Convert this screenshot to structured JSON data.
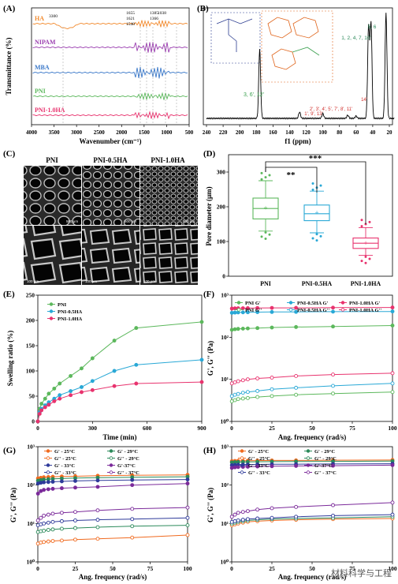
{
  "panelA": {
    "label": "(A)",
    "ylabel": "Transmittance (%)",
    "xlabel": "Wavenumber (cm⁻¹)",
    "xticks": [
      "4000",
      "3500",
      "3000",
      "2500",
      "2000",
      "1500",
      "1000",
      "500"
    ],
    "annotations": [
      "3300",
      "1655",
      "1621",
      "1540",
      "1385",
      "1366",
      "1038"
    ],
    "series": [
      {
        "name": "HA",
        "color": "#f28a2e"
      },
      {
        "name": "NIPAM",
        "color": "#9b3fb0"
      },
      {
        "name": "MBA",
        "color": "#3a78c9"
      },
      {
        "name": "PNI",
        "color": "#5cb85c"
      },
      {
        "name": "PNI-1.0HA",
        "color": "#e8336e"
      }
    ]
  },
  "panelB": {
    "label": "(B)",
    "xlabel": "f1 (ppm)",
    "xticks": [
      "240",
      "220",
      "200",
      "180",
      "160",
      "140",
      "120",
      "100",
      "80",
      "60",
      "40",
      "20"
    ],
    "peaks": [
      "3, 6', 12'",
      "1', 9', 13'",
      "2', 3', 4', 5', 7', 8', 11'",
      "14'",
      "1, 2, 4, 7, 10'",
      "5, 6"
    ]
  },
  "panelC": {
    "label": "(C)",
    "columns": [
      "PNI",
      "PNI-0.5HA",
      "PNI-1.0HA"
    ],
    "scale_top": "500 μm",
    "scale_bottom": "100 μm"
  },
  "panelD": {
    "label": "(D)",
    "ylabel": "Pore diameter (μm)",
    "sig1": "**",
    "sig2": "***",
    "chart_data": {
      "type": "box",
      "categories": [
        "PNI",
        "PNI-0.5HA",
        "PNI-1.0HA"
      ],
      "ylim": [
        0,
        350
      ],
      "yticks": [
        0,
        100,
        200,
        300
      ],
      "boxes": [
        {
          "min": 130,
          "q1": 165,
          "median": 195,
          "q3": 225,
          "max": 275,
          "mean": 197,
          "color": "#5cb85c"
        },
        {
          "min": 125,
          "q1": 160,
          "median": 180,
          "q3": 205,
          "max": 245,
          "mean": 183,
          "color": "#29a8d6"
        },
        {
          "min": 60,
          "q1": 80,
          "median": 95,
          "q3": 110,
          "max": 140,
          "mean": 96,
          "color": "#e8336e"
        }
      ]
    }
  },
  "panelE": {
    "label": "(E)",
    "ylabel": "Swelling ratio (%)",
    "xlabel": "Time (min)",
    "chart_data": {
      "type": "line",
      "xlim": [
        0,
        900
      ],
      "ylim": [
        0,
        250
      ],
      "xticks": [
        0,
        300,
        600,
        900
      ],
      "yticks": [
        0,
        50,
        100,
        150,
        200,
        250
      ],
      "x": [
        0,
        10,
        20,
        40,
        60,
        90,
        120,
        180,
        240,
        300,
        420,
        540,
        900
      ],
      "series": [
        {
          "name": "PNI",
          "color": "#5cb85c",
          "values": [
            0,
            25,
            35,
            45,
            55,
            65,
            75,
            90,
            105,
            125,
            160,
            185,
            197
          ]
        },
        {
          "name": "PNI-0.5HA",
          "color": "#29a8d6",
          "values": [
            0,
            18,
            25,
            32,
            38,
            45,
            52,
            60,
            68,
            80,
            100,
            112,
            122
          ]
        },
        {
          "name": "PNI-1.0HA",
          "color": "#e8336e",
          "values": [
            0,
            15,
            22,
            28,
            33,
            40,
            45,
            52,
            58,
            62,
            70,
            75,
            78
          ]
        }
      ]
    }
  },
  "panelF": {
    "label": "(F)",
    "ylabel": "G', G'' (Pa)",
    "xlabel": "Ang. frequency (rad/s)",
    "legend": [
      "PNI G'",
      "PNI-0.5HA G'",
      "PNI-1.0HA G'",
      "PNI G''",
      "PNI-0.5HA G''",
      "PNI-1.0HA G''"
    ],
    "chart_data": {
      "type": "line",
      "log_y": true,
      "xlim": [
        0,
        100
      ],
      "ylim_exp": [
        0,
        3
      ],
      "x": [
        0.1,
        2,
        4,
        7,
        10,
        16,
        25,
        40,
        63,
        100
      ],
      "series": [
        {
          "name": "PNI G'",
          "color": "#5cb85c",
          "filled": true,
          "values": [
            150,
            155,
            158,
            160,
            162,
            165,
            170,
            175,
            180,
            190
          ]
        },
        {
          "name": "PNI-0.5HA G'",
          "color": "#29a8d6",
          "filled": true,
          "values": [
            380,
            385,
            388,
            390,
            392,
            395,
            398,
            400,
            405,
            410
          ]
        },
        {
          "name": "PNI-1.0HA G'",
          "color": "#e8336e",
          "filled": true,
          "values": [
            480,
            485,
            488,
            490,
            492,
            495,
            498,
            500,
            505,
            510
          ]
        },
        {
          "name": "PNI G''",
          "color": "#5cb85c",
          "filled": false,
          "values": [
            3,
            3.2,
            3.4,
            3.5,
            3.6,
            3.8,
            4,
            4.3,
            4.6,
            5
          ]
        },
        {
          "name": "PNI-0.5HA G''",
          "color": "#29a8d6",
          "filled": false,
          "values": [
            4,
            4.3,
            4.5,
            4.8,
            5,
            5.3,
            5.8,
            6.3,
            7,
            8
          ]
        },
        {
          "name": "PNI-1.0HA G''",
          "color": "#e8336e",
          "filled": false,
          "values": [
            8,
            8.5,
            9,
            9.5,
            10,
            10.5,
            11,
            12,
            13,
            14
          ]
        }
      ]
    }
  },
  "panelG": {
    "label": "(G)",
    "ylabel": "G', G'' (Pa)",
    "xlabel": "Ang. frequency (rad/s)",
    "legend": [
      "G' - 25°C",
      "G' - 29°C",
      "G'' - 25°C",
      "G'' - 29°C",
      "G' - 33°C",
      "G'-37°C",
      "G'' - 33°C",
      "G'' - 37°C"
    ],
    "chart_data": {
      "type": "line",
      "log_y": true,
      "xlim": [
        0,
        100
      ],
      "ylim_exp": [
        0,
        3
      ],
      "x": [
        0.1,
        2,
        4,
        7,
        10,
        16,
        25,
        40,
        63,
        100
      ],
      "series": [
        {
          "name": "G' - 25°C",
          "color": "#f06a1f",
          "filled": true,
          "values": [
            150,
            155,
            160,
            162,
            165,
            168,
            170,
            175,
            180,
            185
          ]
        },
        {
          "name": "G' - 29°C",
          "color": "#2b8a5a",
          "filled": true,
          "values": [
            130,
            135,
            140,
            142,
            145,
            148,
            152,
            156,
            160,
            165
          ]
        },
        {
          "name": "G' - 33°C",
          "color": "#2e3a9a",
          "filled": true,
          "values": [
            110,
            115,
            118,
            120,
            122,
            125,
            128,
            132,
            136,
            140
          ]
        },
        {
          "name": "G'-37°C",
          "color": "#7b2a9a",
          "filled": true,
          "values": [
            60,
            70,
            75,
            78,
            80,
            83,
            86,
            90,
            100,
            110
          ]
        },
        {
          "name": "G'' - 25°C",
          "color": "#f06a1f",
          "filled": false,
          "values": [
            3,
            3.2,
            3.3,
            3.4,
            3.5,
            3.6,
            3.8,
            4,
            4.3,
            5
          ]
        },
        {
          "name": "G'' - 29°C",
          "color": "#2b8a5a",
          "filled": false,
          "values": [
            6,
            6.3,
            6.5,
            6.8,
            7,
            7.3,
            7.6,
            8,
            8.5,
            9
          ]
        },
        {
          "name": "G'' - 33°C",
          "color": "#2e3a9a",
          "filled": false,
          "values": [
            9,
            9.5,
            10,
            10.5,
            11,
            11.5,
            12,
            12.5,
            13,
            14
          ]
        },
        {
          "name": "G'' - 37°C",
          "color": "#7b2a9a",
          "filled": false,
          "values": [
            12,
            14,
            16,
            17,
            18,
            19,
            20,
            22,
            24,
            26
          ]
        }
      ]
    }
  },
  "panelH": {
    "label": "(H)",
    "ylabel": "G', G'' (Pa)",
    "xlabel": "Ang. frequency (rad/s)",
    "legend": [
      "G' - 25°C",
      "G' - 29°C",
      "G'' - 25°C",
      "G'' - 29°C",
      "G' - 33°C",
      "G'-37°C",
      "G'' - 33°C",
      "G'' - 37°C"
    ],
    "chart_data": {
      "type": "line",
      "log_y": true,
      "xlim": [
        0,
        100
      ],
      "ylim_exp": [
        0,
        3
      ],
      "x": [
        0.1,
        2,
        4,
        7,
        10,
        16,
        25,
        40,
        63,
        100
      ],
      "series": [
        {
          "name": "G' - 25°C",
          "color": "#f06a1f",
          "filled": true,
          "values": [
            420,
            425,
            428,
            430,
            432,
            435,
            438,
            440,
            445,
            450
          ]
        },
        {
          "name": "G' - 29°C",
          "color": "#2b8a5a",
          "filled": true,
          "values": [
            390,
            395,
            398,
            400,
            402,
            405,
            408,
            410,
            415,
            420
          ]
        },
        {
          "name": "G' - 33°C",
          "color": "#2e3a9a",
          "filled": true,
          "values": [
            330,
            335,
            338,
            340,
            342,
            345,
            348,
            350,
            355,
            360
          ]
        },
        {
          "name": "G'-37°C",
          "color": "#7b2a9a",
          "filled": true,
          "values": [
            280,
            290,
            295,
            298,
            300,
            305,
            310,
            315,
            320,
            330
          ]
        },
        {
          "name": "G'' - 25°C",
          "color": "#f06a1f",
          "filled": false,
          "values": [
            9,
            9.5,
            10,
            10.5,
            11,
            11.5,
            12,
            12.5,
            13,
            13.5
          ]
        },
        {
          "name": "G'' - 29°C",
          "color": "#2b8a5a",
          "filled": false,
          "values": [
            10,
            10.5,
            11,
            11.5,
            12,
            12.5,
            13,
            13.5,
            14,
            15
          ]
        },
        {
          "name": "G'' - 33°C",
          "color": "#2e3a9a",
          "filled": false,
          "values": [
            11,
            11.5,
            12,
            12.5,
            13,
            13.5,
            14,
            15,
            16,
            17
          ]
        },
        {
          "name": "G'' - 37°C",
          "color": "#7b2a9a",
          "filled": false,
          "values": [
            15,
            17,
            19,
            20,
            21,
            23,
            25,
            27,
            30,
            35
          ]
        }
      ]
    }
  },
  "watermark": "材料科学与工程"
}
